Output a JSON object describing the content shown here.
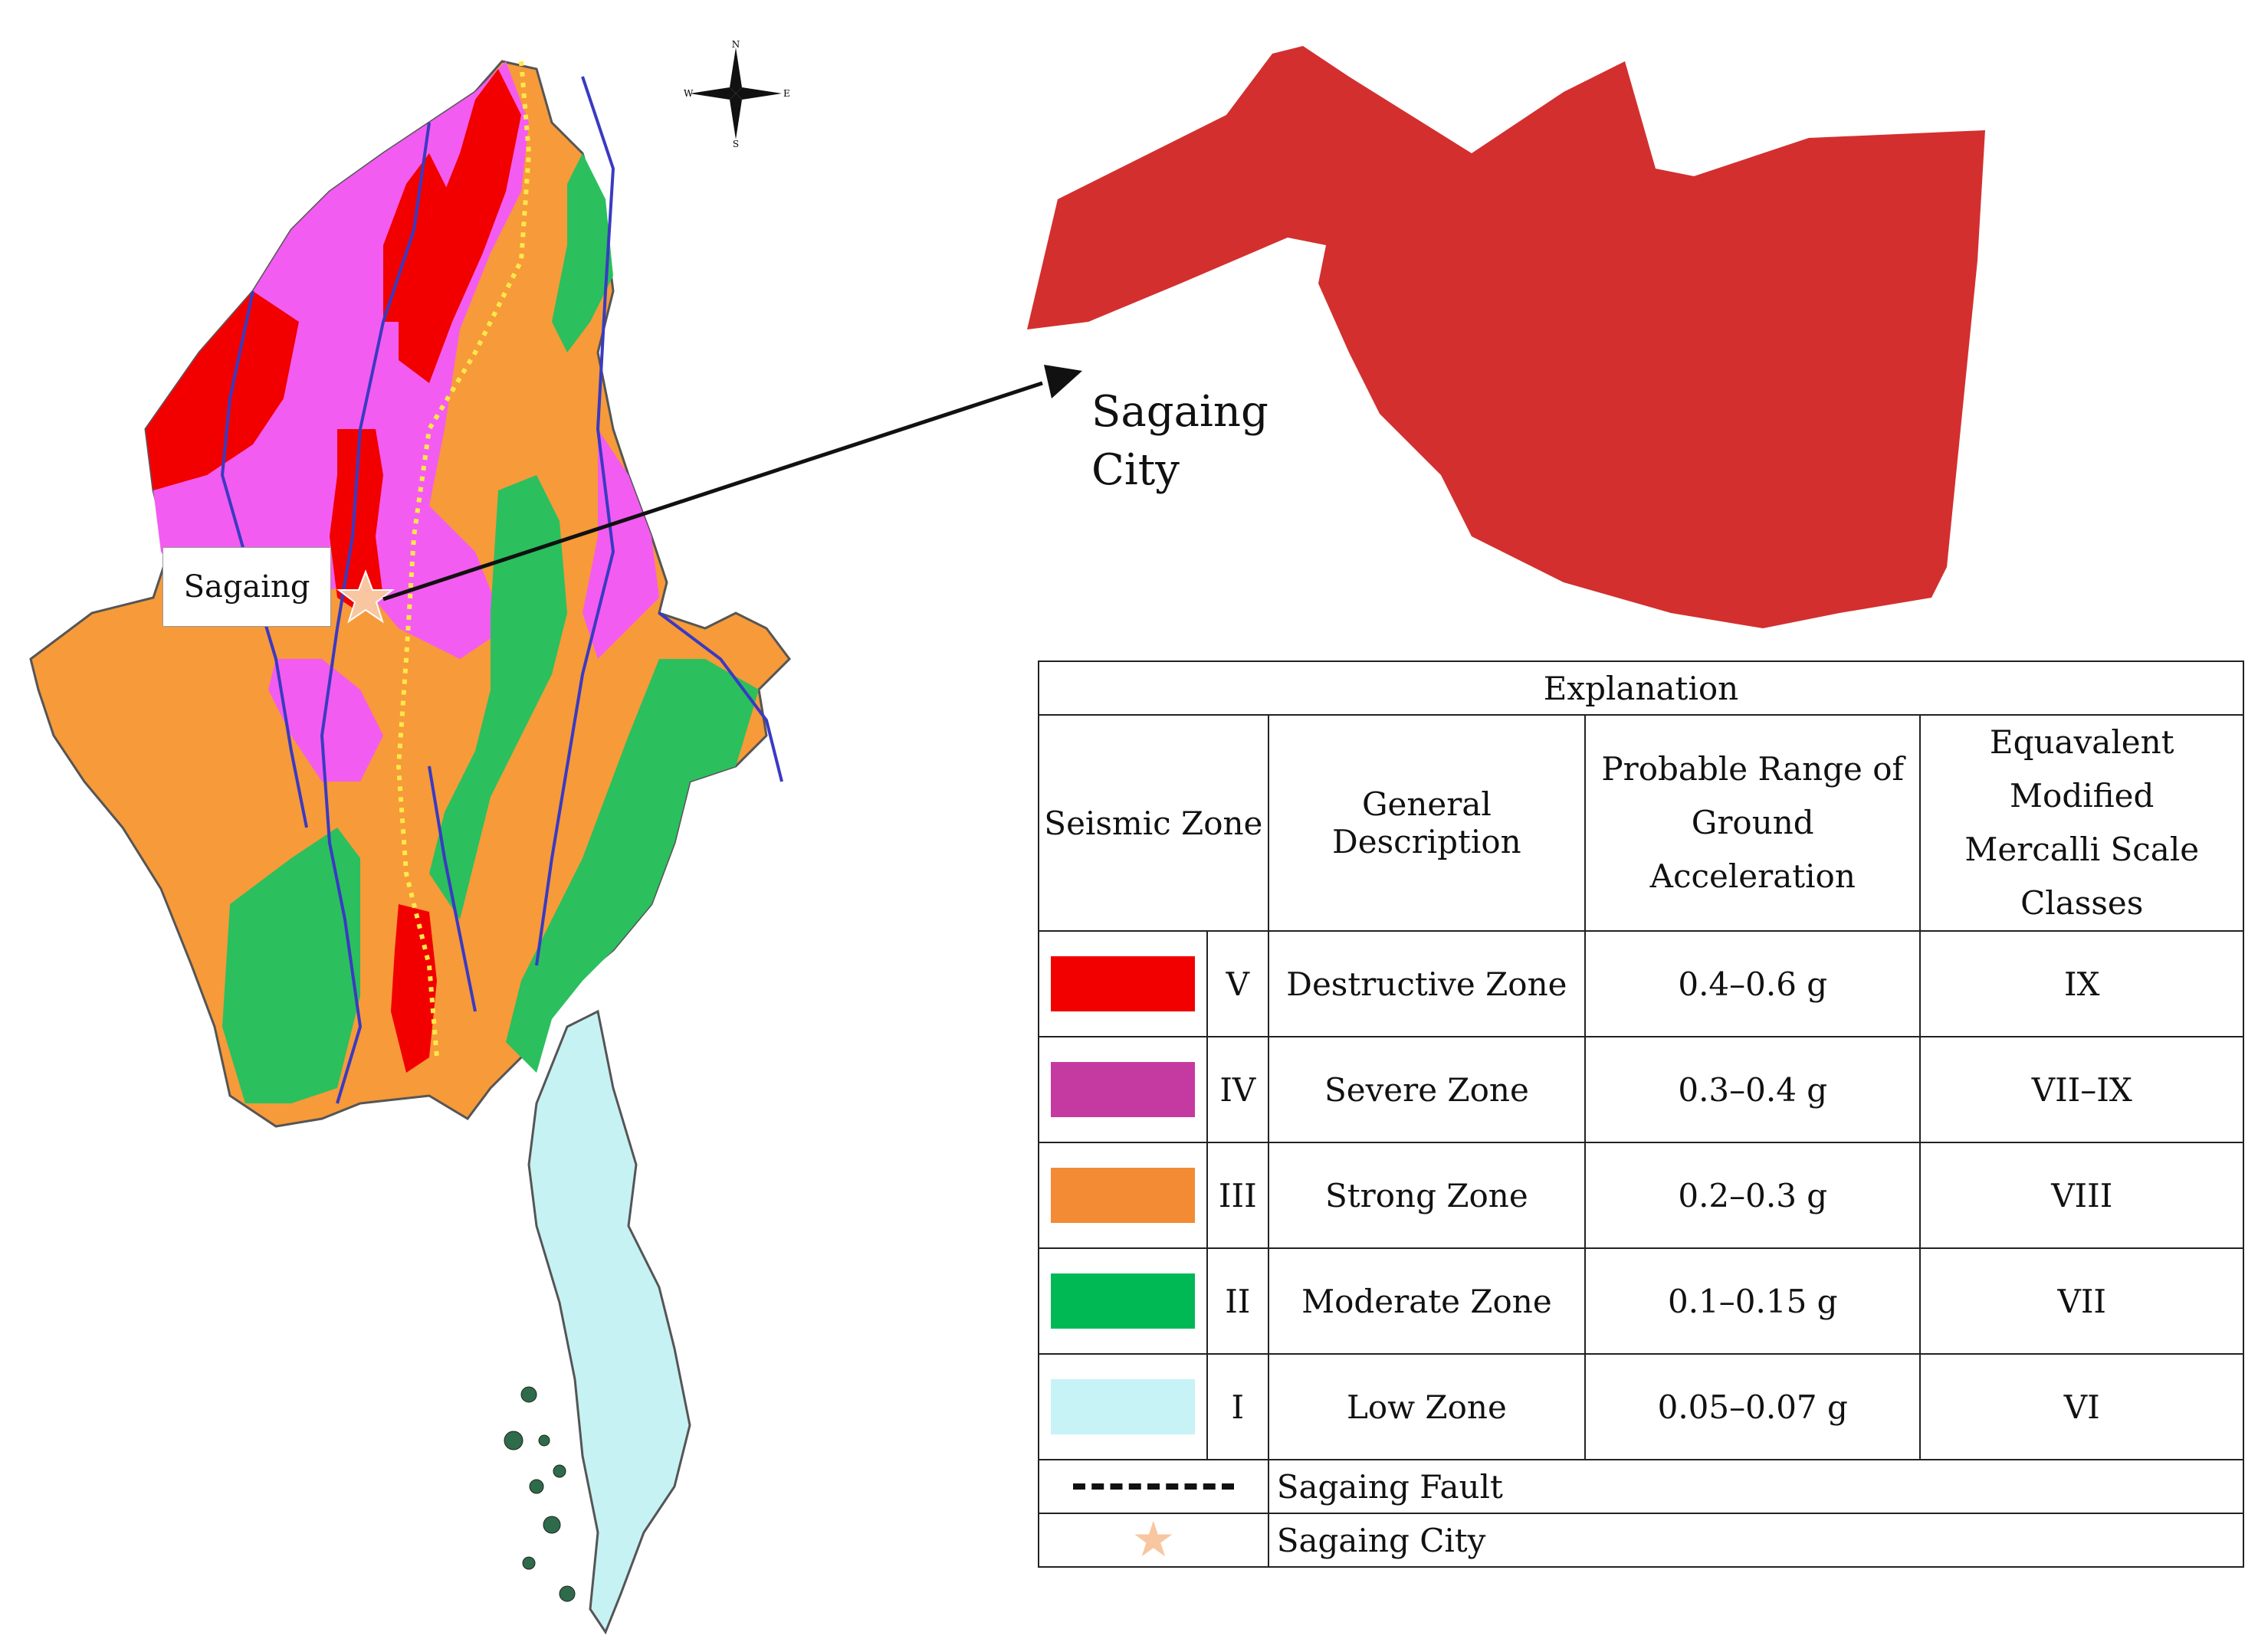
{
  "map": {
    "city_label": "Sagaing",
    "compass_letters": {
      "n": "N",
      "e": "E",
      "s": "S",
      "w": "W"
    },
    "zone_colors": {
      "V": "#f20000",
      "IV": "#f35cf0",
      "III": "#f69a3a",
      "II": "#2bbf5e",
      "I": "#c6f2f4"
    },
    "river_color": "#3a3ac2",
    "fault_color": "#ffe94a"
  },
  "inset": {
    "label_line1": "Sagaing",
    "label_line2": "City",
    "fill_color": "#d32f2f"
  },
  "legend": {
    "title": "Explanation",
    "headers": {
      "zone": "Seismic Zone",
      "description": "General Description",
      "acceleration": "Probable Range of Ground Acceleration",
      "mercalli": "Equavalent Modified Mercalli Scale Classes"
    },
    "rows": [
      {
        "color": "#f20000",
        "zone": "V",
        "description": "Destructive Zone",
        "acceleration": "0.4–0.6 g",
        "mercalli": "IX"
      },
      {
        "color": "#c53aa0",
        "zone": "IV",
        "description": "Severe Zone",
        "acceleration": "0.3–0.4 g",
        "mercalli": "VII–IX"
      },
      {
        "color": "#f38a34",
        "zone": "III",
        "description": "Strong Zone",
        "acceleration": "0.2–0.3 g",
        "mercalli": "VIII"
      },
      {
        "color": "#00b955",
        "zone": "II",
        "description": "Moderate Zone",
        "acceleration": "0.1–0.15 g",
        "mercalli": "VII"
      },
      {
        "color": "#c7f2f6",
        "zone": "I",
        "description": "Low Zone",
        "acceleration": "0.05–0.07 g",
        "mercalli": "VI"
      }
    ],
    "fault_label": "Sagaing Fault",
    "city_label": "Sagaing City"
  }
}
